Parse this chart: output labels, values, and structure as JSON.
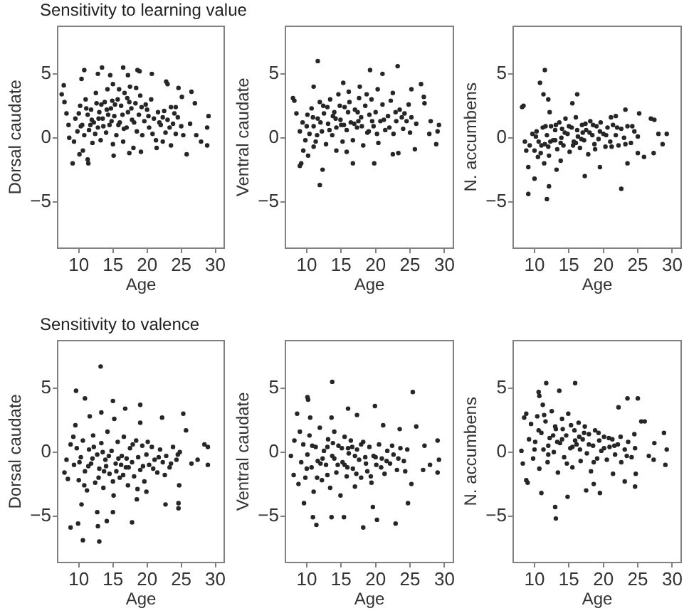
{
  "chart_data": [
    {
      "type": "scatter",
      "title": "Sensitivity to learning value",
      "xlabel": "Age",
      "ylabel": "Dorsal caudate",
      "xlim": [
        6.8,
        31.4
      ],
      "ylim": [
        -8.7,
        8.8
      ],
      "xticks": [
        10,
        15,
        20,
        25,
        30
      ],
      "yticks": [
        -5,
        0,
        5
      ],
      "marker": "circle",
      "color": "#262626",
      "x": [
        7.8,
        7.5,
        7.9,
        8.2,
        8.5,
        8.6,
        9.3,
        9.1,
        10.1,
        10.6,
        11.3,
        11.4,
        10.4,
        10.8,
        12.8,
        13.4,
        14.6,
        16.5,
        17.2,
        18.6,
        18.9,
        20.7,
        22.8,
        23.0,
        24.6,
        26.5,
        25.1,
        27.0,
        24.2,
        29.0,
        28.8,
        26.3,
        27.2,
        27.9,
        28.8,
        25.8,
        23.5,
        22.3,
        21.4,
        19.1,
        17.4,
        15.1,
        9.5,
        9.8,
        10.2,
        10.5,
        10.8,
        11.0,
        11.3,
        11.5,
        11.8,
        12.0,
        12.2,
        12.5,
        12.8,
        13.0,
        13.2,
        13.5,
        13.8,
        14.0,
        14.2,
        14.5,
        14.7,
        15.0,
        15.0,
        15.2,
        15.5,
        15.7,
        16.0,
        16.2,
        16.5,
        16.7,
        17.0,
        17.2,
        17.5,
        17.8,
        18.0,
        18.3,
        18.5,
        18.8,
        19.0,
        19.3,
        19.6,
        20.0,
        20.3,
        20.6,
        21.0,
        21.3,
        21.6,
        22.0,
        22.3,
        22.7,
        23.0,
        23.5,
        23.8,
        24.2,
        24.5,
        25.0,
        25.3,
        11.7,
        12.4,
        13.3,
        14.3,
        14.9,
        15.8,
        16.4,
        17.4,
        18.1,
        19.8,
        10.0,
        12.9,
        10.3,
        11.1,
        11.9,
        12.6,
        13.6,
        14.1,
        14.8,
        15.3,
        15.9,
        16.6,
        17.1,
        17.7,
        18.4,
        19.2,
        20.2,
        20.8,
        21.8,
        22.5,
        23.3,
        24.0
      ],
      "values": [
        4.1,
        3.4,
        2.8,
        1.9,
        1.0,
        0.0,
        -0.3,
        -2.0,
        -1.3,
        -1.0,
        -1.7,
        -2.0,
        4.6,
        5.3,
        5.0,
        5.5,
        4.9,
        5.5,
        4.9,
        5.3,
        5.2,
        5.0,
        4.4,
        4.2,
        3.9,
        3.6,
        3.2,
        2.7,
        2.4,
        1.7,
        0.8,
        1.1,
        0.2,
        -0.3,
        -0.6,
        -1.3,
        -0.6,
        -0.3,
        -0.8,
        -1.1,
        -1.2,
        -1.4,
        1.5,
        0.5,
        2.5,
        1.0,
        0.2,
        3.0,
        1.8,
        0.6,
        2.2,
        -0.4,
        1.2,
        3.5,
        0.8,
        2.0,
        -0.2,
        1.5,
        2.8,
        0.4,
        3.8,
        1.0,
        2.3,
        -0.5,
        4.2,
        1.7,
        0.2,
        3.0,
        1.2,
        2.5,
        -0.3,
        3.5,
        0.8,
        2.0,
        4.0,
        1.4,
        -0.8,
        2.7,
        0.5,
        1.8,
        3.3,
        0.2,
        1.3,
        2.2,
        0.8,
        3.0,
        1.5,
        -0.2,
        2.0,
        1.0,
        1.6,
        0.4,
        1.4,
        2.4,
        1.1,
        0.3,
        1.6,
        0.9,
        0.2,
        1.0,
        0.3,
        2.6,
        1.8,
        2.9,
        1.0,
        1.8,
        2.8,
        1.2,
        2.6,
        1.9,
        1.5,
        0.9,
        2.3,
        1.4,
        2.7,
        0.9,
        2.2,
        1.3,
        2.6,
        3.8,
        0.7,
        3.1,
        2.3,
        3.9,
        2.4,
        1.7,
        0.3,
        1.2,
        2.1,
        0.8,
        1.9
      ]
    },
    {
      "type": "scatter",
      "xlabel": "Age",
      "ylabel": "Ventral caudate",
      "xlim": [
        6.8,
        31.4
      ],
      "ylim": [
        -8.7,
        8.8
      ],
      "xticks": [
        10,
        15,
        20,
        25,
        30
      ],
      "yticks": [
        -5,
        0,
        5
      ],
      "marker": "circle",
      "color": "#262626",
      "x": [
        11.6,
        11.0,
        8.0,
        8.2,
        8.5,
        9.2,
        9.0,
        11.9,
        12.3,
        16.7,
        19.8,
        19.2,
        21.0,
        23.2,
        15.3,
        17.7,
        20.3,
        22.5,
        25.2,
        26.6,
        27.0,
        27.1,
        28.0,
        29.2,
        29.0,
        27.8,
        28.8,
        25.7,
        23.3,
        22.5,
        25.9,
        25.2,
        24.2,
        9.5,
        10.2,
        11.0,
        14.3,
        15.8,
        9.0,
        9.4,
        9.8,
        10.1,
        10.4,
        10.7,
        11.0,
        11.3,
        11.6,
        11.9,
        12.2,
        12.5,
        12.8,
        13.1,
        13.4,
        13.7,
        14.0,
        14.3,
        14.6,
        14.9,
        15.2,
        15.5,
        15.8,
        16.1,
        16.4,
        16.7,
        17.0,
        17.3,
        17.6,
        17.9,
        18.2,
        18.5,
        18.8,
        19.1,
        19.4,
        19.7,
        20.0,
        20.4,
        20.7,
        21.0,
        21.4,
        21.8,
        22.2,
        22.6,
        23.0,
        23.5,
        24.0,
        24.5,
        25.0,
        12.0,
        13.0,
        15.0,
        16.0,
        17.5,
        19.0,
        13.8,
        10.0,
        10.9,
        11.5,
        12.4,
        13.3,
        14.2,
        14.8,
        15.4,
        16.2,
        16.9,
        17.4,
        18.0,
        18.7,
        19.5,
        20.2,
        21.2,
        22.0,
        22.9,
        23.8,
        24.8
      ],
      "values": [
        6.0,
        4.0,
        3.1,
        2.9,
        1.9,
        -2.0,
        -2.2,
        -3.7,
        -2.5,
        -2.0,
        -2.0,
        5.3,
        5.0,
        5.6,
        4.3,
        4.0,
        3.8,
        3.5,
        3.8,
        4.2,
        3.2,
        2.7,
        1.3,
        1.0,
        0.5,
        0.3,
        -0.5,
        -0.9,
        -1.2,
        -1.3,
        1.1,
        1.6,
        1.9,
        -1.0,
        -1.4,
        -0.7,
        -1.0,
        -1.1,
        0.5,
        1.2,
        -0.2,
        1.8,
        0.3,
        2.3,
        0.9,
        -0.3,
        1.5,
        2.8,
        0.5,
        1.9,
        -0.5,
        1.1,
        3.0,
        0.2,
        2.0,
        0.8,
        3.4,
        1.4,
        -0.3,
        2.4,
        0.6,
        3.6,
        1.2,
        -0.2,
        2.2,
        0.8,
        3.1,
        1.6,
        -0.6,
        2.5,
        0.4,
        1.8,
        3.0,
        0.9,
        2.0,
        -0.4,
        1.3,
        2.6,
        0.6,
        1.7,
        2.9,
        0.3,
        1.3,
        2.2,
        0.7,
        1.3,
        0.4,
        1.2,
        2.4,
        1.0,
        2.0,
        1.3,
        0.5,
        1.7,
        0.9,
        1.6,
        0.2,
        2.5,
        0.6,
        1.5,
        2.5,
        1.0,
        2.8,
        1.1,
        2.0,
        0.9,
        3.4,
        1.3,
        0.3,
        1.4,
        0.8,
        2.0,
        1.6,
        2.6
      ]
    },
    {
      "type": "scatter",
      "xlabel": "Age",
      "ylabel": "N. accumbens",
      "xlim": [
        6.8,
        31.4
      ],
      "ylim": [
        -8.7,
        8.8
      ],
      "xticks": [
        10,
        15,
        20,
        25,
        30
      ],
      "yticks": [
        -5,
        0,
        5
      ],
      "marker": "circle",
      "color": "#262626",
      "x": [
        8.2,
        8.4,
        11.5,
        10.8,
        11.3,
        12.0,
        16.2,
        15.5,
        12.2,
        9.1,
        11.8,
        12.1,
        10.0,
        9.1,
        8.8,
        8.6,
        22.6,
        17.3,
        19.5,
        23.5,
        25.0,
        25.9,
        27.3,
        28.6,
        29.2,
        28.0,
        26.9,
        27.4,
        25.2,
        23.2,
        21.8,
        21.1,
        13.8,
        13.2,
        11.4,
        10.5,
        9.3,
        9.7,
        10.0,
        10.3,
        10.6,
        10.9,
        11.2,
        11.5,
        11.8,
        12.1,
        12.4,
        12.7,
        13.0,
        13.3,
        13.6,
        13.9,
        14.2,
        14.5,
        14.8,
        15.1,
        15.4,
        15.7,
        16.0,
        16.3,
        16.6,
        16.9,
        17.2,
        17.5,
        17.8,
        18.1,
        18.4,
        18.7,
        19.0,
        19.3,
        19.6,
        20.0,
        20.3,
        20.6,
        21.0,
        21.4,
        21.8,
        22.2,
        22.6,
        23.0,
        23.5,
        24.0,
        24.5,
        25.0,
        12.0,
        14.0,
        16.0,
        17.0,
        18.5,
        13.0,
        10.2,
        11.0,
        11.6,
        12.3,
        13.1,
        13.8,
        14.4,
        15.0,
        15.6,
        16.2,
        16.8,
        17.4,
        18.0,
        18.8,
        19.5,
        20.4,
        21.2,
        22.0,
        23.2,
        24.2
      ],
      "values": [
        2.4,
        2.5,
        5.3,
        4.3,
        3.4,
        3.0,
        3.4,
        2.7,
        2.0,
        -4.4,
        -4.8,
        -3.8,
        -3.2,
        -2.3,
        -1.0,
        -0.3,
        -4.0,
        -3.0,
        -2.3,
        -2.0,
        -1.2,
        -1.5,
        -1.2,
        -0.5,
        0.3,
        0.3,
        1.5,
        1.4,
        1.9,
        2.2,
        1.7,
        1.6,
        -1.8,
        -2.5,
        -2.0,
        -1.5,
        -0.6,
        0.3,
        -1.0,
        0.5,
        -0.3,
        -1.2,
        0.8,
        -0.5,
        0.2,
        -1.4,
        0.9,
        -0.2,
        0.6,
        -0.9,
        1.2,
        0.0,
        -0.6,
        1.5,
        0.3,
        -1.1,
        0.8,
        -0.3,
        1.6,
        0.1,
        -0.8,
        1.0,
        -0.2,
        0.6,
        -1.3,
        1.3,
        0.2,
        -0.5,
        0.9,
        -0.1,
        1.2,
        0.3,
        -0.7,
        0.8,
        -0.3,
        1.0,
        0.2,
        -0.6,
        0.7,
        0.0,
        0.9,
        -0.4,
        0.5,
        0.1,
        -0.7,
        0.7,
        -0.4,
        0.4,
        1.0,
        -0.2,
        0.1,
        -0.6,
        0.9,
        -0.3,
        1.0,
        -0.4,
        0.4,
        0.9,
        -0.6,
        0.6,
        -0.1,
        1.1,
        0.4,
        -0.9,
        0.5,
        0.2,
        -0.7,
        0.8,
        -0.5,
        0.9
      ]
    },
    {
      "type": "scatter",
      "title": "Sensitivity to valence",
      "xlabel": "Age",
      "ylabel": "Dorsal caudate",
      "xlim": [
        6.8,
        31.4
      ],
      "ylim": [
        -8.7,
        8.8
      ],
      "xticks": [
        10,
        15,
        20,
        25,
        30
      ],
      "yticks": [
        -5,
        0,
        5
      ],
      "marker": "circle",
      "color": "#262626",
      "x": [
        13.2,
        9.6,
        10.9,
        15.0,
        19.0,
        16.8,
        25.3,
        22.2,
        25.7,
        28.4,
        28.9,
        28.9,
        27.4,
        26.5,
        24.7,
        24.6,
        24.6,
        22.7,
        19.9,
        18.5,
        17.8,
        14.1,
        15.0,
        12.7,
        12.8,
        8.8,
        9.9,
        10.6,
        13.0,
        10.4,
        8.4,
        7.9,
        8.2,
        8.8,
        9.2,
        9.5,
        11.6,
        13.3,
        15.2,
        19.0,
        9.3,
        9.7,
        10.0,
        10.3,
        10.6,
        10.9,
        11.2,
        11.5,
        11.8,
        12.1,
        12.4,
        12.7,
        13.0,
        13.3,
        13.6,
        13.9,
        14.2,
        14.5,
        14.8,
        15.1,
        15.4,
        15.7,
        16.0,
        16.3,
        16.6,
        16.9,
        17.2,
        17.5,
        17.8,
        18.1,
        18.4,
        18.7,
        19.0,
        19.3,
        19.6,
        19.9,
        20.3,
        20.7,
        21.1,
        21.5,
        21.9,
        22.3,
        22.8,
        23.3,
        23.8,
        24.3,
        24.8,
        12.0,
        14.0,
        15.5,
        17.0,
        13.5,
        16.2,
        10.1,
        10.8,
        11.4,
        12.2,
        12.9,
        13.7,
        14.4,
        15.0,
        15.8,
        16.5,
        17.3,
        17.9,
        18.6,
        19.4,
        20.1,
        20.9,
        21.7,
        22.6,
        23.5,
        24.5
      ],
      "values": [
        6.7,
        4.8,
        4.2,
        4.0,
        3.7,
        3.4,
        3.0,
        2.7,
        1.7,
        0.6,
        0.4,
        -1.0,
        -0.6,
        -0.9,
        -2.6,
        -4.0,
        -4.4,
        -4.1,
        -3.1,
        -3.7,
        -5.5,
        -5.4,
        -4.7,
        -4.7,
        -5.8,
        -5.9,
        -5.6,
        -6.9,
        -7.0,
        -4.1,
        -2.1,
        -1.6,
        -0.6,
        0.6,
        1.2,
        2.1,
        2.8,
        3.1,
        2.6,
        2.3,
        -1.0,
        0.3,
        -2.2,
        -0.4,
        0.9,
        -1.5,
        -3.0,
        0.2,
        -0.9,
        1.3,
        -2.4,
        -0.2,
        -1.3,
        0.7,
        -2.8,
        -0.6,
        1.6,
        -1.7,
        0.1,
        -3.4,
        -0.9,
        0.8,
        -2.0,
        -0.3,
        1.2,
        -1.2,
        -2.6,
        0.3,
        -0.8,
        -1.9,
        0.9,
        -0.4,
        -1.4,
        0.5,
        -2.3,
        -0.2,
        -1.0,
        0.4,
        -0.6,
        -1.6,
        0.2,
        -0.8,
        -0.3,
        -1.2,
        0.4,
        -0.6,
        0.0,
        -0.5,
        -1.1,
        -1.5,
        -0.5,
        0.0,
        -1.0,
        -0.8,
        -2.6,
        -1.1,
        0.4,
        -2.0,
        -1.5,
        -0.3,
        -2.3,
        -0.5,
        -1.8,
        -1.2,
        0.6,
        -2.9,
        -1.1,
        0.8,
        -1.3,
        -0.4,
        -1.8,
        -0.9,
        -0.2
      ]
    },
    {
      "type": "scatter",
      "xlabel": "Age",
      "ylabel": "Ventral caudate",
      "xlim": [
        6.8,
        31.4
      ],
      "ylim": [
        -8.7,
        8.8
      ],
      "xticks": [
        10,
        15,
        20,
        25,
        30
      ],
      "yticks": [
        -5,
        0,
        5
      ],
      "marker": "circle",
      "color": "#262626",
      "x": [
        13.7,
        25.4,
        10.1,
        10.2,
        8.6,
        19.9,
        16.0,
        25.9,
        29.0,
        27.1,
        29.2,
        29.0,
        26.9,
        27.9,
        25.2,
        24.7,
        22.9,
        20.2,
        18.2,
        19.6,
        15.4,
        13.6,
        11.4,
        10.9,
        9.6,
        8.1,
        8.8,
        7.7,
        8.2,
        9.0,
        10.5,
        13.6,
        17.3,
        21.1,
        23.5,
        9.2,
        9.5,
        9.8,
        10.1,
        10.4,
        10.7,
        11.0,
        11.3,
        11.6,
        11.9,
        12.2,
        12.5,
        12.8,
        13.1,
        13.4,
        13.7,
        14.0,
        14.3,
        14.6,
        14.9,
        15.2,
        15.5,
        15.8,
        16.1,
        16.4,
        16.7,
        17.0,
        17.3,
        17.6,
        17.9,
        18.2,
        18.5,
        18.8,
        19.1,
        19.4,
        19.7,
        20.1,
        20.5,
        20.9,
        21.3,
        21.7,
        22.1,
        22.6,
        23.1,
        23.6,
        24.1,
        24.6,
        12.0,
        14.0,
        15.5,
        17.0,
        13.0,
        16.0,
        10.0,
        10.8,
        11.5,
        12.3,
        13.0,
        13.8,
        14.5,
        15.1,
        15.9,
        16.6,
        17.2,
        17.9,
        18.6,
        19.3,
        20.0,
        20.8,
        21.6,
        22.4,
        23.3,
        24.3
      ],
      "values": [
        5.5,
        4.7,
        4.3,
        4.1,
        3.0,
        3.6,
        3.4,
        2.0,
        0.9,
        0.5,
        -0.6,
        -1.6,
        -1.4,
        -1.0,
        -2.5,
        -4.0,
        -5.6,
        -5.3,
        -5.9,
        -4.3,
        -5.1,
        -5.1,
        -5.7,
        -5.1,
        -4.0,
        -1.8,
        -2.5,
        -0.3,
        0.9,
        1.6,
        2.7,
        2.7,
        2.9,
        2.1,
        1.8,
        -0.8,
        0.6,
        -2.0,
        -0.2,
        1.3,
        -1.2,
        -3.1,
        0.4,
        -0.7,
        1.9,
        -2.2,
        0.1,
        -1.0,
        1.0,
        -2.8,
        -0.3,
        1.6,
        -1.6,
        0.5,
        -3.4,
        -0.8,
        1.2,
        -1.9,
        -0.1,
        0.9,
        -1.3,
        -2.7,
        0.2,
        -0.6,
        -2.0,
        0.8,
        -0.4,
        -1.5,
        0.4,
        -2.4,
        -0.3,
        -1.0,
        0.6,
        -0.5,
        -1.7,
        0.1,
        -0.9,
        -0.2,
        -1.4,
        0.3,
        -0.7,
        0.2,
        -0.9,
        -0.5,
        -1.0,
        -0.3,
        0.4,
        0.3,
        -1.3,
        0.5,
        -2.0,
        -0.5,
        -1.8,
        0.7,
        -1.0,
        0.3,
        -1.2,
        0.4,
        -1.7,
        0.6,
        -0.9,
        -1.9,
        -0.4,
        -1.2,
        -0.7,
        0.5,
        -0.5,
        -1.5
      ]
    },
    {
      "type": "scatter",
      "xlabel": "Age",
      "ylabel": "N. accumbens",
      "xlim": [
        6.8,
        31.4
      ],
      "ylim": [
        -8.7,
        8.8
      ],
      "xticks": [
        10,
        15,
        20,
        25,
        30
      ],
      "yticks": [
        -5,
        0,
        5
      ],
      "marker": "circle",
      "color": "#262626",
      "x": [
        11.7,
        15.9,
        13.6,
        10.6,
        10.7,
        11.2,
        8.8,
        8.5,
        23.5,
        25.0,
        22.2,
        25.5,
        26.0,
        24.5,
        28.8,
        29.2,
        27.4,
        27.3,
        29.0,
        26.6,
        24.7,
        24.6,
        23.1,
        13.0,
        13.1,
        14.8,
        11.0,
        9.0,
        8.8,
        8.3,
        8.1,
        17.5,
        18.6,
        19.5,
        21.4,
        9.2,
        9.5,
        9.8,
        10.1,
        10.4,
        10.7,
        11.0,
        11.3,
        11.6,
        11.9,
        12.2,
        12.5,
        12.8,
        13.1,
        13.4,
        13.7,
        14.0,
        14.3,
        14.6,
        14.9,
        15.2,
        15.5,
        15.8,
        16.1,
        16.4,
        16.7,
        17.0,
        17.3,
        17.6,
        17.9,
        18.2,
        18.5,
        18.8,
        19.1,
        19.4,
        19.7,
        20.1,
        20.5,
        20.9,
        21.3,
        21.7,
        22.1,
        22.6,
        23.1,
        23.6,
        24.1,
        24.6,
        12.0,
        14.0,
        15.5,
        13.0,
        16.5,
        10.0,
        10.6,
        11.4,
        12.0,
        12.7,
        13.3,
        14.1,
        14.7,
        15.3,
        15.9,
        16.6,
        17.2,
        17.9,
        18.6,
        19.3,
        20.1,
        20.8,
        21.6,
        22.5,
        23.4
      ],
      "values": [
        5.4,
        5.4,
        4.8,
        4.7,
        4.4,
        3.7,
        3.0,
        2.7,
        4.2,
        4.2,
        3.5,
        2.4,
        2.4,
        1.4,
        1.5,
        0.2,
        0.7,
        -0.6,
        -1.0,
        -0.3,
        -1.7,
        -2.7,
        -2.3,
        -4.3,
        -5.2,
        -3.5,
        -3.2,
        -2.4,
        -2.2,
        -0.9,
        0.1,
        -3.0,
        -2.5,
        -3.2,
        -1.7,
        1.0,
        2.2,
        -0.5,
        0.8,
        2.8,
        -1.3,
        1.5,
        0.2,
        2.4,
        -0.8,
        1.1,
        3.2,
        0.0,
        1.8,
        -1.6,
        0.7,
        2.6,
        -0.4,
        1.3,
        3.0,
        0.3,
        -1.2,
        1.7,
        0.6,
        2.3,
        -0.7,
        1.0,
        2.0,
        -0.1,
        1.4,
        -1.5,
        0.5,
        1.7,
        -0.5,
        0.9,
        0.1,
        1.2,
        -0.6,
        0.4,
        1.0,
        -0.2,
        0.6,
        -0.8,
        0.2,
        0.8,
        -0.4,
        0.3,
        0.5,
        1.0,
        0.4,
        2.0,
        1.2,
        0.2,
        1.7,
        2.9,
        -0.2,
        1.3,
        0.8,
        1.8,
        -0.9,
        2.1,
        0.9,
        0.2,
        1.5,
        0.6,
        -0.8,
        1.5,
        0.3,
        1.1,
        0.5,
        1.2,
        -0.3
      ]
    }
  ]
}
